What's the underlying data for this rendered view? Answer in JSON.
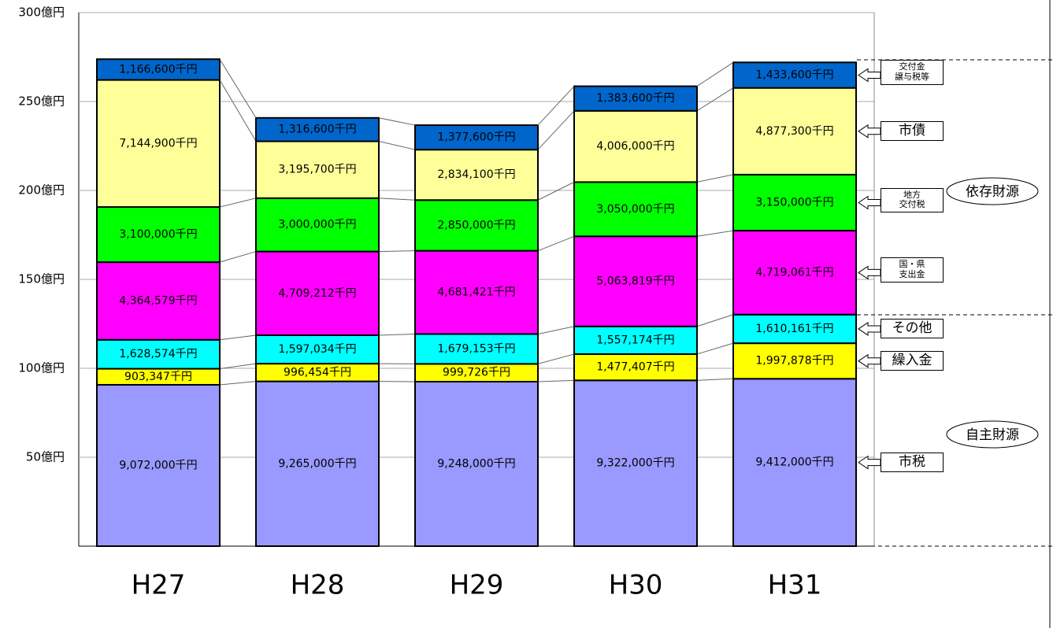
{
  "chart_data": {
    "type": "stacked_bar",
    "categories": [
      "H27",
      "H28",
      "H29",
      "H30",
      "H31"
    ],
    "ylim": [
      0,
      300
    ],
    "yticks": [
      {
        "value": 50,
        "label": "50億円"
      },
      {
        "value": 100,
        "label": "100億円"
      },
      {
        "value": 150,
        "label": "150億円"
      },
      {
        "value": 200,
        "label": "200億円"
      },
      {
        "value": 250,
        "label": "250億円"
      },
      {
        "value": 300,
        "label": "300億円"
      }
    ],
    "series": [
      {
        "name": "市税",
        "color": "#9999ff",
        "values": [
          90.72,
          92.65,
          92.48,
          93.22,
          94.12
        ],
        "value_labels": [
          "9,072,000千円",
          "9,265,000千円",
          "9,248,000千円",
          "9,322,000千円",
          "9,412,000千円"
        ]
      },
      {
        "name": "繰入金",
        "color": "#ffff00",
        "values": [
          9.03347,
          9.96454,
          9.99726,
          14.77407,
          19.97878
        ],
        "value_labels": [
          "903,347千円",
          "996,454千円",
          "999,726千円",
          "1,477,407千円",
          "1,997,878千円"
        ]
      },
      {
        "name": "その他",
        "color": "#00ffff",
        "values": [
          16.28574,
          15.97034,
          16.79153,
          15.57174,
          16.10161
        ],
        "value_labels": [
          "1,628,574千円",
          "1,597,034千円",
          "1,679,153千円",
          "1,557,174千円",
          "1,610,161千円"
        ]
      },
      {
        "name": "国・県\n支出金",
        "color": "#ff00ff",
        "values": [
          43.64579,
          47.09212,
          46.81421,
          50.63819,
          47.19061
        ],
        "value_labels": [
          "4,364,579千円",
          "4,709,212千円",
          "4,681,421千円",
          "5,063,819千円",
          "4,719,061千円"
        ]
      },
      {
        "name": "地方\n交付税",
        "color": "#00ff00",
        "values": [
          31.0,
          30.0,
          28.5,
          30.5,
          31.5
        ],
        "value_labels": [
          "3,100,000千円",
          "3,000,000千円",
          "2,850,000千円",
          "3,050,000千円",
          "3,150,000千円"
        ]
      },
      {
        "name": "市債",
        "color": "#ffff99",
        "values": [
          71.449,
          31.957,
          28.341,
          40.06,
          48.773
        ],
        "value_labels": [
          "7,144,900千円",
          "3,195,700千円",
          "2,834,100千円",
          "4,006,000千円",
          "4,877,300千円"
        ]
      },
      {
        "name": "交付金\n譲与税等",
        "color": "#0066cc",
        "values": [
          11.666,
          13.166,
          13.776,
          13.836,
          14.336
        ],
        "value_labels": [
          "1,166,600千円",
          "1,316,600千円",
          "1,377,600千円",
          "1,383,600千円",
          "1,433,600千円"
        ]
      }
    ],
    "annotations": [
      "依存財源",
      "自主財源"
    ]
  }
}
